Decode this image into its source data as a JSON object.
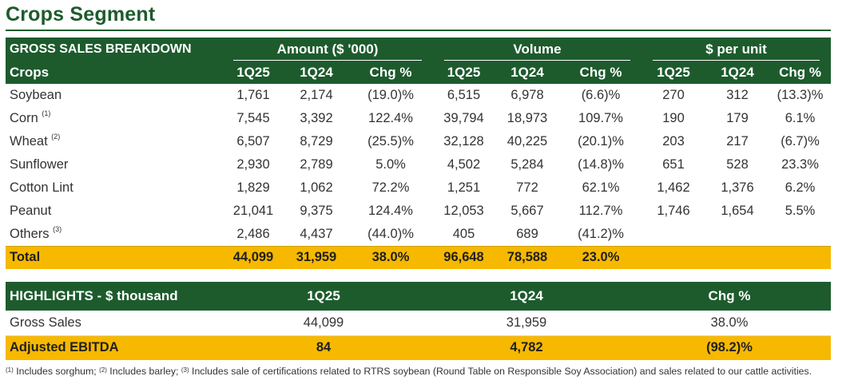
{
  "title": "Crops Segment",
  "breakdown": {
    "header_label": "GROSS SALES BREAKDOWN",
    "groups": [
      "Amount ($ '000)",
      "Volume",
      "$ per unit"
    ],
    "crops_label": "Crops",
    "columns": [
      "1Q25",
      "1Q24",
      "Chg %",
      "1Q25",
      "1Q24",
      "Chg %",
      "1Q25",
      "1Q24",
      "Chg %"
    ],
    "rows": [
      {
        "name": "Soybean",
        "note": "",
        "values": [
          "1,761",
          "2,174",
          "(19.0)%",
          "6,515",
          "6,978",
          "(6.6)%",
          "270",
          "312",
          "(13.3)%"
        ]
      },
      {
        "name": "Corn",
        "note": "(1)",
        "values": [
          "7,545",
          "3,392",
          "122.4%",
          "39,794",
          "18,973",
          "109.7%",
          "190",
          "179",
          "6.1%"
        ]
      },
      {
        "name": "Wheat",
        "note": "(2)",
        "values": [
          "6,507",
          "8,729",
          "(25.5)%",
          "32,128",
          "40,225",
          "(20.1)%",
          "203",
          "217",
          "(6.7)%"
        ]
      },
      {
        "name": "Sunflower",
        "note": "",
        "values": [
          "2,930",
          "2,789",
          "5.0%",
          "4,502",
          "5,284",
          "(14.8)%",
          "651",
          "528",
          "23.3%"
        ]
      },
      {
        "name": "Cotton Lint",
        "note": "",
        "values": [
          "1,829",
          "1,062",
          "72.2%",
          "1,251",
          "772",
          "62.1%",
          "1,462",
          "1,376",
          "6.2%"
        ]
      },
      {
        "name": "Peanut",
        "note": "",
        "values": [
          "21,041",
          "9,375",
          "124.4%",
          "12,053",
          "5,667",
          "112.7%",
          "1,746",
          "1,654",
          "5.5%"
        ]
      },
      {
        "name": "Others",
        "note": "(3)",
        "values": [
          "2,486",
          "4,437",
          "(44.0)%",
          "405",
          "689",
          "(41.2)%",
          "",
          "",
          ""
        ]
      }
    ],
    "total": {
      "name": "Total",
      "values": [
        "44,099",
        "31,959",
        "38.0%",
        "96,648",
        "78,588",
        "23.0%"
      ]
    }
  },
  "highlights": {
    "header_label": "HIGHLIGHTS - $ thousand",
    "columns": [
      "1Q25",
      "1Q24",
      "Chg %"
    ],
    "gross_sales": {
      "label": "Gross Sales",
      "values": [
        "44,099",
        "31,959",
        "38.0%"
      ]
    },
    "adjusted_ebitda": {
      "label": "Adjusted EBITDA",
      "values": [
        "84",
        "4,782",
        "(98.2)%"
      ]
    }
  },
  "footnotes": {
    "n1_mark": "(1)",
    "n1_text": " Includes sorghum; ",
    "n2_mark": "(2)",
    "n2_text": " Includes barley; ",
    "n3_mark": "(3)",
    "n3_text": " Includes sale of certifications related to RTRS soybean (Round Table on Responsible Soy Association) and sales related to our cattle activities."
  },
  "colors": {
    "green": "#1d5b2d",
    "gold": "#f7b800"
  }
}
